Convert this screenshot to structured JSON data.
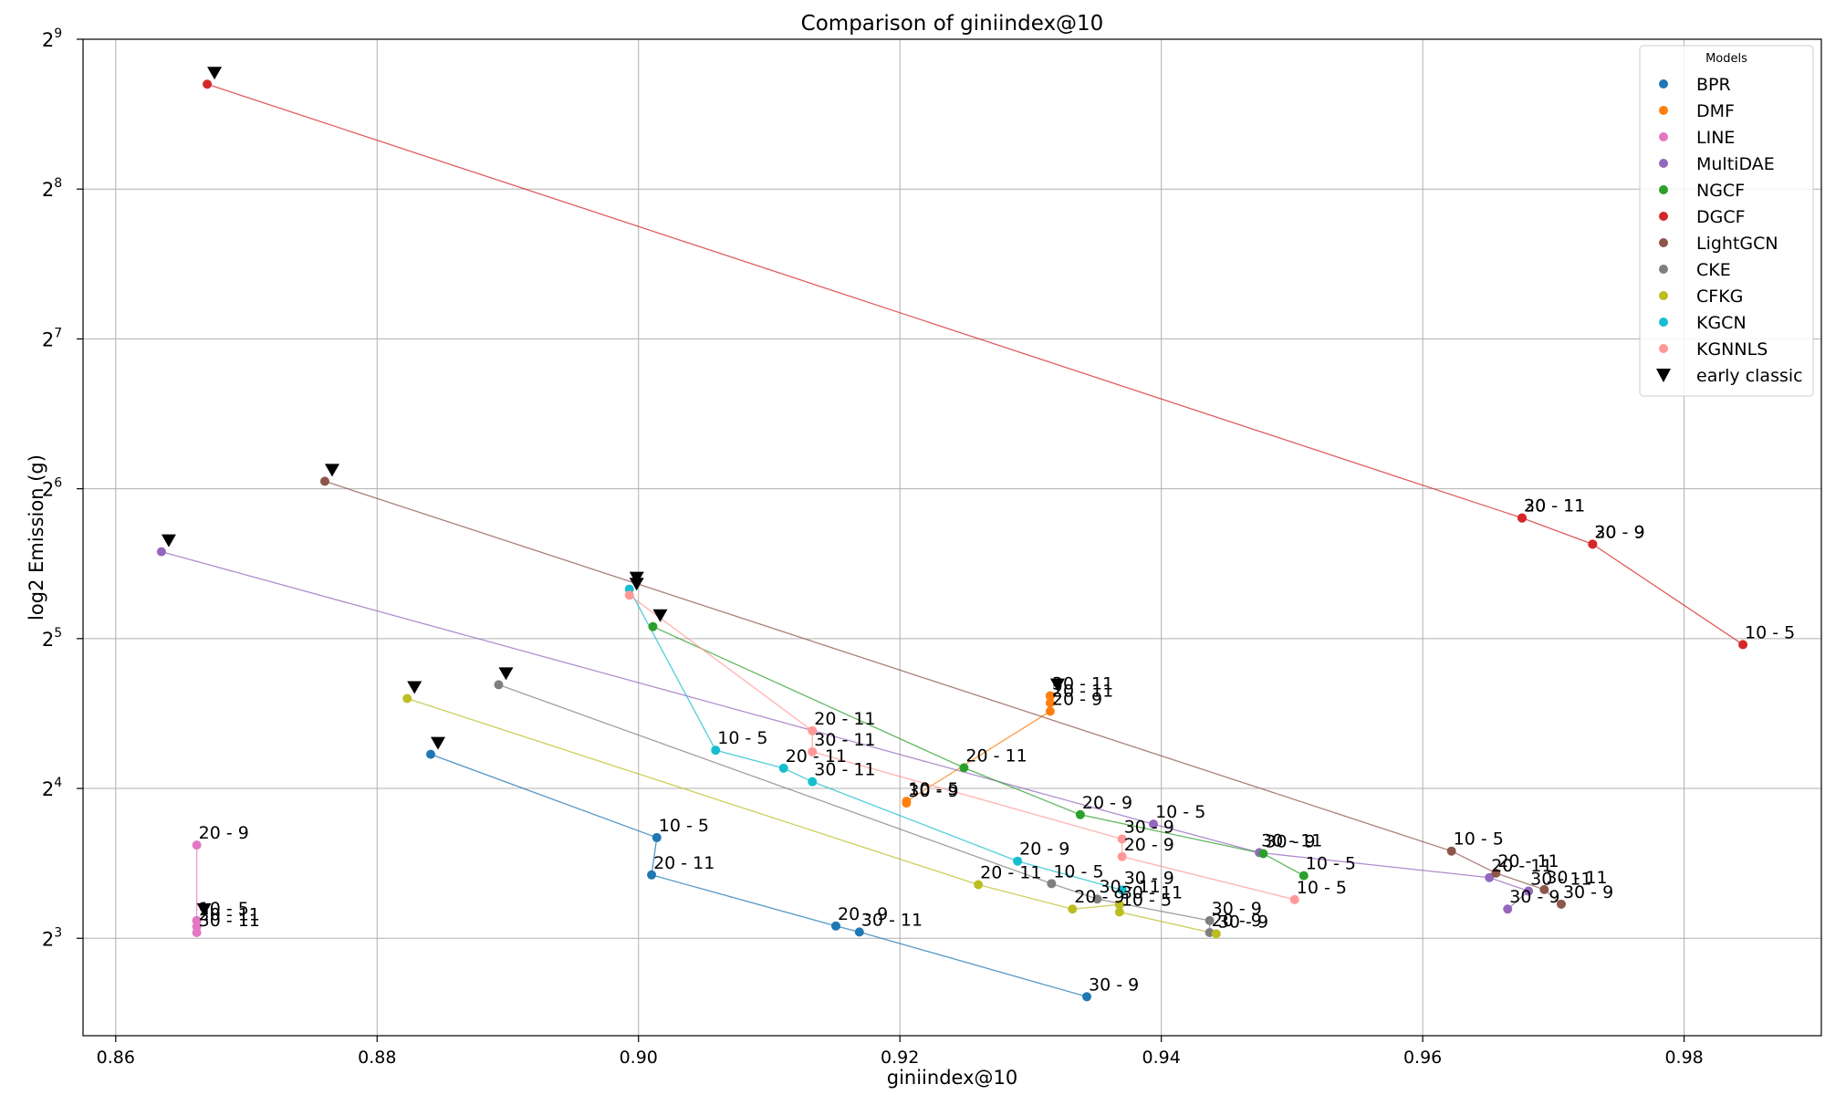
{
  "chart_data": {
    "type": "scatter",
    "title": "Comparison of giniindex@10",
    "xlabel": "giniindex@10",
    "ylabel": "log2 Emission (g)",
    "y_scale": "log2",
    "xlim": [
      0.8575,
      0.9905
    ],
    "ylim_log2": [
      2.35,
      9.0
    ],
    "x_ticks": [
      0.86,
      0.88,
      0.9,
      0.92,
      0.94,
      0.96,
      0.98
    ],
    "x_tick_labels": [
      "0.86",
      "0.88",
      "0.90",
      "0.92",
      "0.94",
      "0.96",
      "0.98"
    ],
    "y_ticks_log2": [
      3,
      4,
      5,
      6,
      7,
      8,
      9
    ],
    "y_tick_base": "2",
    "grid": true,
    "legend_title": "Models",
    "legend_position": "upper right",
    "early_classic_label": "early classic",
    "series": [
      {
        "name": "BPR",
        "color": "#1f77b4",
        "early": {
          "x": 0.8841,
          "log2y": 4.228
        },
        "points": [
          {
            "x": 0.9014,
            "log2y": 3.672,
            "label": "10 - 5"
          },
          {
            "x": 0.901,
            "log2y": 3.423,
            "label": "20 - 11"
          },
          {
            "x": 0.9151,
            "log2y": 3.082,
            "label": "20 - 9"
          },
          {
            "x": 0.9169,
            "log2y": 3.042,
            "label": "30 - 11"
          },
          {
            "x": 0.9343,
            "log2y": 2.61,
            "label": "30 - 9"
          }
        ]
      },
      {
        "name": "DMF",
        "color": "#ff7f0e",
        "early": {
          "x": 0.9315,
          "log2y": 4.618
        },
        "points": [
          {
            "x": 0.9315,
            "log2y": 4.618,
            "label": "30 - 11"
          },
          {
            "x": 0.9315,
            "log2y": 4.571,
            "label": "20 - 11"
          },
          {
            "x": 0.9315,
            "log2y": 4.515,
            "label": "20 - 9"
          },
          {
            "x": 0.9205,
            "log2y": 3.914,
            "label": "10 - 5"
          },
          {
            "x": 0.9205,
            "log2y": 3.902,
            "label": "30 - 9"
          }
        ]
      },
      {
        "name": "LINE",
        "color": "#e377c2",
        "early": {
          "x": 0.8662,
          "log2y": 3.118
        },
        "points": [
          {
            "x": 0.8662,
            "log2y": 3.622,
            "label": "20 - 9"
          },
          {
            "x": 0.8662,
            "log2y": 3.118,
            "label": "10 - 5"
          },
          {
            "x": 0.8662,
            "log2y": 3.078,
            "label": "20 - 11"
          },
          {
            "x": 0.8662,
            "log2y": 3.038,
            "label": "30 - 11"
          }
        ]
      },
      {
        "name": "MultiDAE",
        "color": "#9467bd",
        "early": {
          "x": 0.8635,
          "log2y": 5.58
        },
        "points": [
          {
            "x": 0.9394,
            "log2y": 3.762,
            "label": "10 - 5"
          },
          {
            "x": 0.9475,
            "log2y": 3.572,
            "label": "30 - 11"
          },
          {
            "x": 0.9651,
            "log2y": 3.405,
            "label": "20 - 11"
          },
          {
            "x": 0.9681,
            "log2y": 3.315,
            "label": "30 - 11"
          },
          {
            "x": 0.9665,
            "log2y": 3.195,
            "label": "30 - 9"
          }
        ]
      },
      {
        "name": "NGCF",
        "color": "#2ca02c",
        "early": {
          "x": 0.9011,
          "log2y": 5.08
        },
        "points": [
          {
            "x": 0.9249,
            "log2y": 4.138,
            "label": "20 - 11"
          },
          {
            "x": 0.9338,
            "log2y": 3.825,
            "label": "20 - 9"
          },
          {
            "x": 0.9478,
            "log2y": 3.565,
            "label": "30 - 9"
          },
          {
            "x": 0.9509,
            "log2y": 3.418,
            "label": "10 - 5"
          }
        ]
      },
      {
        "name": "DGCF",
        "color": "#d62728",
        "early": {
          "x": 0.867,
          "log2y": 8.7
        },
        "points": [
          {
            "x": 0.9676,
            "log2y": 5.805,
            "label": "30 - 11"
          },
          {
            "x": 0.9676,
            "log2y": 5.805,
            "label": "20 - 11"
          },
          {
            "x": 0.973,
            "log2y": 5.63,
            "label": "20 - 9"
          },
          {
            "x": 0.973,
            "log2y": 5.63,
            "label": "30 - 9"
          },
          {
            "x": 0.9845,
            "log2y": 4.96,
            "label": "10 - 5"
          }
        ]
      },
      {
        "name": "LightGCN",
        "color": "#8c564b",
        "early": {
          "x": 0.876,
          "log2y": 6.05
        },
        "points": [
          {
            "x": 0.9622,
            "log2y": 3.582,
            "label": "10 - 5"
          },
          {
            "x": 0.9656,
            "log2y": 3.435,
            "label": "20 - 11"
          },
          {
            "x": 0.9693,
            "log2y": 3.325,
            "label": "30 - 11"
          },
          {
            "x": 0.9706,
            "log2y": 3.228,
            "label": "30 - 9"
          }
        ]
      },
      {
        "name": "CKE",
        "color": "#7f7f7f",
        "early": {
          "x": 0.8893,
          "log2y": 4.692
        },
        "points": [
          {
            "x": 0.9316,
            "log2y": 3.365,
            "label": "10 - 5"
          },
          {
            "x": 0.9351,
            "log2y": 3.262,
            "label": "30 - 11"
          },
          {
            "x": 0.9437,
            "log2y": 3.118,
            "label": "30 - 9"
          },
          {
            "x": 0.9437,
            "log2y": 3.038,
            "label": "20 - 9"
          }
        ]
      },
      {
        "name": "CFKG",
        "color": "#bcbd22",
        "early": {
          "x": 0.8823,
          "log2y": 4.6
        },
        "points": [
          {
            "x": 0.926,
            "log2y": 3.358,
            "label": "20 - 11"
          },
          {
            "x": 0.9332,
            "log2y": 3.195,
            "label": "20 - 9"
          },
          {
            "x": 0.9368,
            "log2y": 3.225,
            "label": "30 - 11"
          },
          {
            "x": 0.9368,
            "log2y": 3.175,
            "label": "10 - 5"
          },
          {
            "x": 0.9442,
            "log2y": 3.03,
            "label": "30 - 9"
          }
        ]
      },
      {
        "name": "KGCN",
        "color": "#17becf",
        "early": {
          "x": 0.8993,
          "log2y": 5.33
        },
        "points": [
          {
            "x": 0.9059,
            "log2y": 4.255,
            "label": "10 - 5"
          },
          {
            "x": 0.9111,
            "log2y": 4.135,
            "label": "20 - 11"
          },
          {
            "x": 0.9133,
            "log2y": 4.045,
            "label": "30 - 11"
          },
          {
            "x": 0.929,
            "log2y": 3.515,
            "label": "20 - 9"
          },
          {
            "x": 0.937,
            "log2y": 3.322,
            "label": "30 - 9"
          }
        ]
      },
      {
        "name": "KGNNLS",
        "color": "#ff9896",
        "early": {
          "x": 0.8993,
          "log2y": 5.29
        },
        "points": [
          {
            "x": 0.9133,
            "log2y": 4.385,
            "label": "20 - 11"
          },
          {
            "x": 0.9133,
            "log2y": 4.245,
            "label": "30 - 11"
          },
          {
            "x": 0.937,
            "log2y": 3.662,
            "label": "30 - 9"
          },
          {
            "x": 0.937,
            "log2y": 3.545,
            "label": "20 - 9"
          },
          {
            "x": 0.9502,
            "log2y": 3.258,
            "label": "10 - 5"
          }
        ]
      }
    ]
  }
}
